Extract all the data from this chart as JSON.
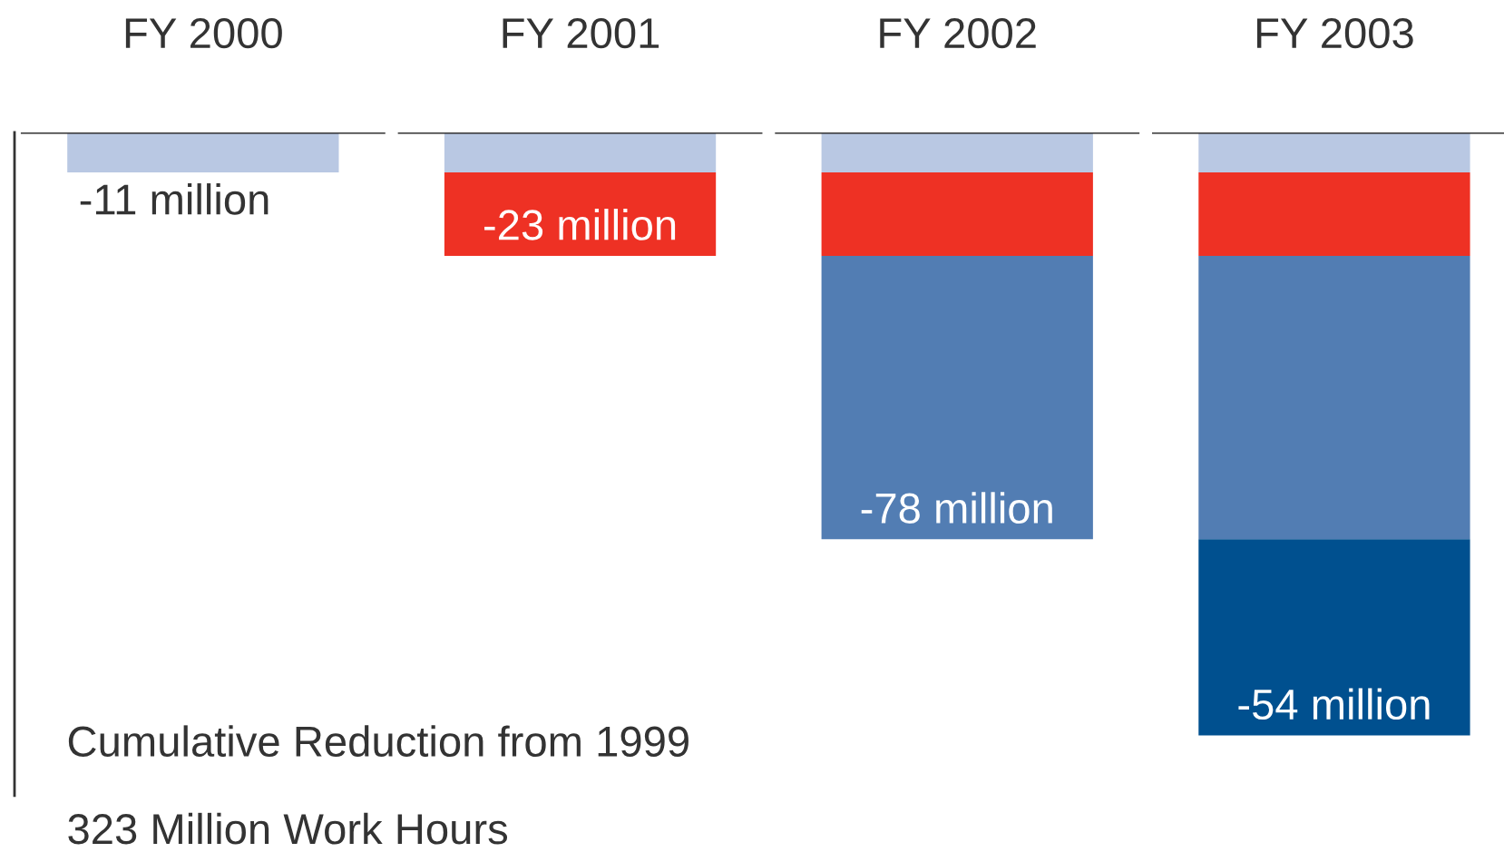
{
  "chart_data": {
    "type": "bar",
    "stacked": true,
    "categories": [
      "FY 2000",
      "FY 2001",
      "FY 2002",
      "FY 2003"
    ],
    "series": [
      {
        "color": "#b9c8e3",
        "values": [
          -11,
          -11,
          -11,
          -11
        ],
        "value_labels": [
          "-11 million",
          null,
          null,
          null
        ]
      },
      {
        "color": "#ee3124",
        "values": [
          null,
          -23,
          -23,
          -23
        ],
        "value_labels": [
          null,
          "-23 million",
          null,
          null
        ]
      },
      {
        "color": "#527db3",
        "values": [
          null,
          null,
          -78,
          -78
        ],
        "value_labels": [
          null,
          null,
          "-78 million",
          null
        ]
      },
      {
        "color": "#00508f",
        "values": [
          null,
          null,
          null,
          -54
        ],
        "value_labels": [
          null,
          null,
          null,
          "-54 million"
        ]
      }
    ],
    "annotations": [
      "Cumulative Reduction from 1999",
      "323 Million Work Hours"
    ],
    "grid": false,
    "legend": false
  }
}
